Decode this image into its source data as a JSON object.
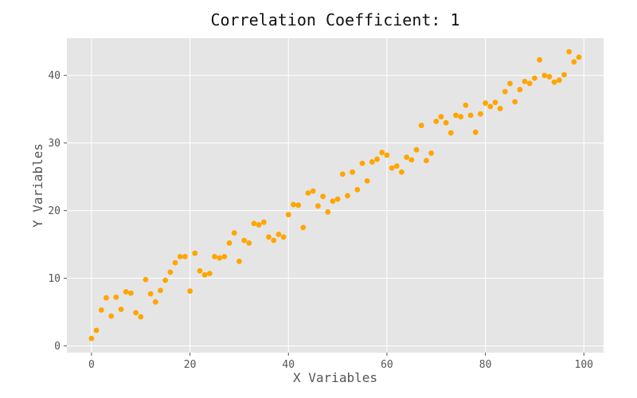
{
  "chart_data": {
    "type": "scatter",
    "title": "Correlation Coefficient: 1",
    "xlabel": "X Variables",
    "ylabel": "Y Variables",
    "xlim": [
      -5,
      104
    ],
    "ylim": [
      -1,
      45.5
    ],
    "xticks": [
      0,
      20,
      40,
      60,
      80,
      100
    ],
    "yticks": [
      0,
      10,
      20,
      30,
      40
    ],
    "grid": true,
    "background": "#e5e5e5",
    "marker_color": "#ffa500",
    "series": [
      {
        "x": [
          0,
          1,
          2,
          3,
          4,
          5,
          6,
          7,
          8,
          9,
          10,
          11,
          12,
          13,
          14,
          15,
          16,
          17,
          18,
          19,
          20,
          21,
          22,
          23,
          24,
          25,
          26,
          27,
          28,
          29,
          30,
          31,
          32,
          33,
          34,
          35,
          36,
          37,
          38,
          39,
          40,
          41,
          42,
          43,
          44,
          45,
          46,
          47,
          48,
          49,
          50,
          51,
          52,
          53,
          54,
          55,
          56,
          57,
          58,
          59,
          60,
          61,
          62,
          63,
          64,
          65,
          66,
          67,
          68,
          69,
          70,
          71,
          72,
          73,
          74,
          75,
          76,
          77,
          78,
          79,
          80,
          81,
          82,
          83,
          84,
          85,
          86,
          87,
          88,
          89,
          90,
          91,
          92,
          93,
          94,
          95,
          96,
          97,
          98,
          99
        ],
        "y": [
          1.1,
          2.3,
          5.3,
          7.1,
          4.4,
          7.2,
          5.4,
          8.0,
          7.8,
          4.9,
          4.3,
          9.8,
          7.7,
          6.5,
          8.2,
          9.7,
          10.9,
          12.3,
          13.2,
          13.2,
          8.1,
          13.7,
          11.1,
          10.5,
          10.7,
          13.2,
          13.0,
          13.2,
          15.2,
          16.7,
          12.5,
          15.6,
          15.2,
          18.1,
          17.9,
          18.3,
          16.1,
          15.6,
          16.5,
          16.1,
          19.4,
          20.9,
          20.8,
          17.5,
          22.6,
          22.9,
          20.7,
          22.1,
          19.8,
          21.4,
          21.7,
          25.4,
          22.2,
          25.7,
          23.1,
          27.0,
          24.4,
          27.2,
          27.6,
          28.6,
          28.2,
          26.3,
          26.6,
          25.7,
          27.9,
          27.5,
          29.0,
          32.6,
          27.4,
          28.5,
          33.2,
          33.9,
          33.0,
          31.5,
          34.1,
          33.9,
          35.6,
          34.1,
          31.6,
          34.3,
          35.9,
          35.4,
          36.0,
          35.1,
          37.6,
          38.8,
          36.1,
          37.9,
          39.1,
          38.8,
          39.6,
          42.3,
          40.0,
          39.8,
          39.0,
          39.3,
          40.1,
          43.5,
          42.0,
          42.7
        ]
      }
    ]
  }
}
